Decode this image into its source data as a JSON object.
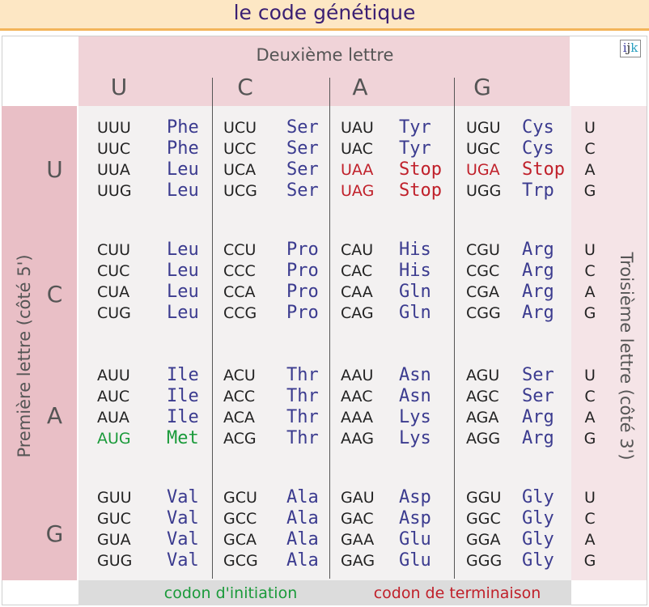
{
  "title": "le code génétique",
  "logo": {
    "i": "i",
    "j": "j",
    "k": "k"
  },
  "second_letter_label": "Deuxième lettre",
  "first_letter_label": "Première lettre (côté 5')",
  "third_letter_label": "Troisième lettre  (côté 3')",
  "bases": [
    "U",
    "C",
    "A",
    "G"
  ],
  "rows": [
    {
      "cells": [
        [
          [
            "UUU",
            "Phe"
          ],
          [
            "UUC",
            "Phe"
          ],
          [
            "UUA",
            "Leu"
          ],
          [
            "UUG",
            "Leu"
          ]
        ],
        [
          [
            "UCU",
            "Ser"
          ],
          [
            "UCC",
            "Ser"
          ],
          [
            "UCA",
            "Ser"
          ],
          [
            "UCG",
            "Ser"
          ]
        ],
        [
          [
            "UAU",
            "Tyr"
          ],
          [
            "UAC",
            "Tyr"
          ],
          [
            "UAA",
            "Stop"
          ],
          [
            "UAG",
            "Stop"
          ]
        ],
        [
          [
            "UGU",
            "Cys"
          ],
          [
            "UGC",
            "Cys"
          ],
          [
            "UGA",
            "Stop"
          ],
          [
            "UGG",
            "Trp"
          ]
        ]
      ]
    },
    {
      "cells": [
        [
          [
            "CUU",
            "Leu"
          ],
          [
            "CUC",
            "Leu"
          ],
          [
            "CUA",
            "Leu"
          ],
          [
            "CUG",
            "Leu"
          ]
        ],
        [
          [
            "CCU",
            "Pro"
          ],
          [
            "CCC",
            "Pro"
          ],
          [
            "CCA",
            "Pro"
          ],
          [
            "CCG",
            "Pro"
          ]
        ],
        [
          [
            "CAU",
            "His"
          ],
          [
            "CAC",
            "His"
          ],
          [
            "CAA",
            "Gln"
          ],
          [
            "CAG",
            "Gln"
          ]
        ],
        [
          [
            "CGU",
            "Arg"
          ],
          [
            "CGC",
            "Arg"
          ],
          [
            "CGA",
            "Arg"
          ],
          [
            "CGG",
            "Arg"
          ]
        ]
      ]
    },
    {
      "cells": [
        [
          [
            "AUU",
            "Ile"
          ],
          [
            "AUC",
            "Ile"
          ],
          [
            "AUA",
            "Ile"
          ],
          [
            "AUG",
            "Met"
          ]
        ],
        [
          [
            "ACU",
            "Thr"
          ],
          [
            "ACC",
            "Thr"
          ],
          [
            "ACA",
            "Thr"
          ],
          [
            "ACG",
            "Thr"
          ]
        ],
        [
          [
            "AAU",
            "Asn"
          ],
          [
            "AAC",
            "Asn"
          ],
          [
            "AAA",
            "Lys"
          ],
          [
            "AAG",
            "Lys"
          ]
        ],
        [
          [
            "AGU",
            "Ser"
          ],
          [
            "AGC",
            "Ser"
          ],
          [
            "AGA",
            "Arg"
          ],
          [
            "AGG",
            "Arg"
          ]
        ]
      ]
    },
    {
      "cells": [
        [
          [
            "GUU",
            "Val"
          ],
          [
            "GUC",
            "Val"
          ],
          [
            "GUA",
            "Val"
          ],
          [
            "GUG",
            "Val"
          ]
        ],
        [
          [
            "GCU",
            "Ala"
          ],
          [
            "GCC",
            "Ala"
          ],
          [
            "GCA",
            "Ala"
          ],
          [
            "GCG",
            "Ala"
          ]
        ],
        [
          [
            "GAU",
            "Asp"
          ],
          [
            "GAC",
            "Asp"
          ],
          [
            "GAA",
            "Glu"
          ],
          [
            "GAG",
            "Glu"
          ]
        ],
        [
          [
            "GGU",
            "Gly"
          ],
          [
            "GGC",
            "Gly"
          ],
          [
            "GGA",
            "Gly"
          ],
          [
            "GGG",
            "Gly"
          ]
        ]
      ]
    }
  ],
  "stop_codons": [
    "UAA",
    "UAG",
    "UGA"
  ],
  "start_codons": [
    "AUG"
  ],
  "legend": {
    "initiation": "codon d'initiation",
    "termination": "codon de terminaison"
  },
  "colors": {
    "amino_acid": "#3b3b8f",
    "stop": "#c0202a",
    "start": "#1a9a3a",
    "codon": "#222222"
  }
}
